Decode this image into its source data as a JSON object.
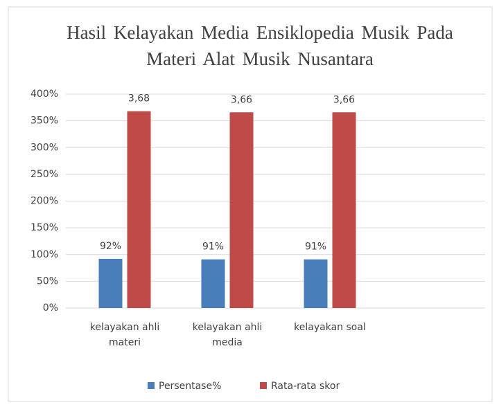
{
  "chart_data": {
    "type": "bar",
    "title": "Hasil Kelayakan Media Ensiklopedia Musik Pada Materi Alat Musik Nusantara",
    "categories": [
      "kelayakan ahli materi",
      "kelayakan ahli media",
      "kelayakan soal"
    ],
    "series": [
      {
        "name": "Persentase%",
        "color": "#4a7ebb",
        "values": [
          92,
          91,
          91
        ],
        "value_labels": [
          "92%",
          "91%",
          "91%"
        ]
      },
      {
        "name": "Rata-rata skor",
        "color": "#be4b48",
        "values": [
          368,
          366,
          366
        ],
        "value_labels": [
          "3,68",
          "3,66",
          "3,66"
        ]
      }
    ],
    "ylim": [
      0,
      400
    ],
    "yticks": [
      {
        "value": 0,
        "label": "0%"
      },
      {
        "value": 50,
        "label": "50%"
      },
      {
        "value": 100,
        "label": "100%"
      },
      {
        "value": 150,
        "label": "150%"
      },
      {
        "value": 200,
        "label": "200%"
      },
      {
        "value": 250,
        "label": "250%"
      },
      {
        "value": 300,
        "label": "300%"
      },
      {
        "value": 350,
        "label": "350%"
      },
      {
        "value": 400,
        "label": "400%"
      }
    ],
    "grid": true,
    "legend": "bottom"
  }
}
